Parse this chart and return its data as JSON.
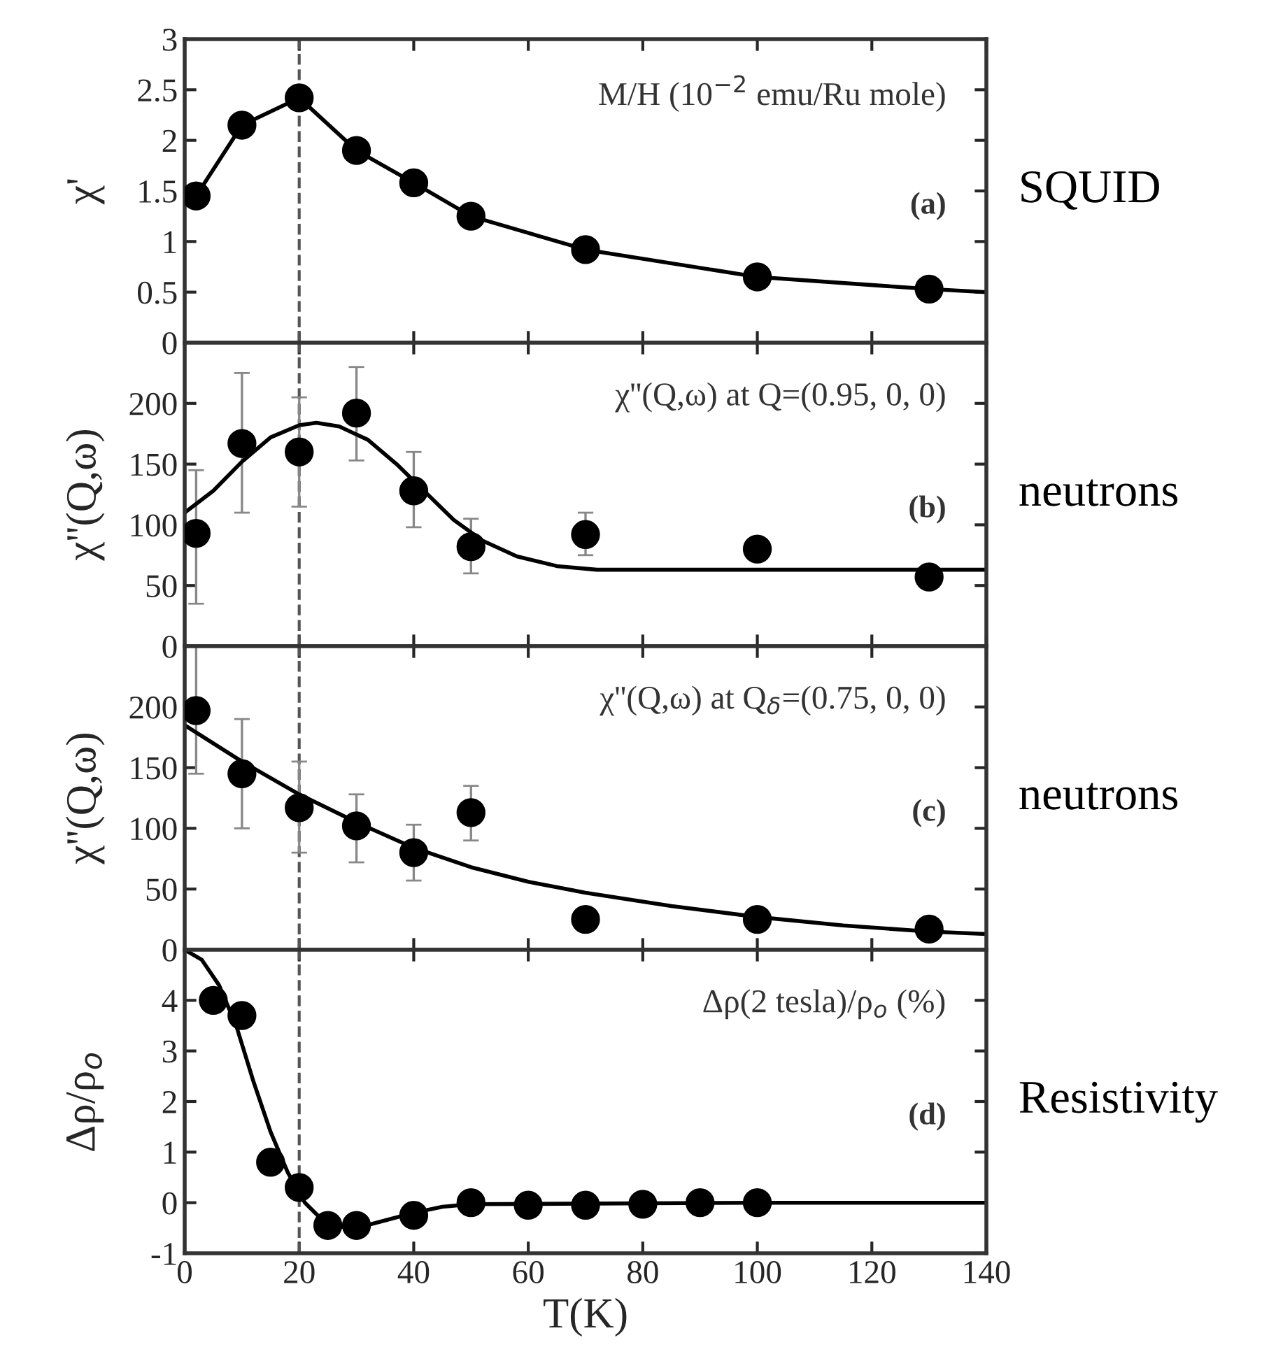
{
  "chart_data": [
    {
      "type": "scatter",
      "ylabel": "χ'",
      "xlim": [
        0,
        140
      ],
      "xticks": [
        0,
        20,
        40,
        60,
        80,
        100,
        120,
        140
      ],
      "ylim": [
        0,
        3
      ],
      "yticks": [
        0,
        0.5,
        1,
        1.5,
        2,
        2.5,
        3
      ],
      "tick_labels": "y",
      "annotations": [
        "M/H (10$^{−2}$ emu/Ru mole)",
        "(a)",
        "SQUID"
      ],
      "ref_lines": [
        {
          "axis": "x",
          "value": 20,
          "line_style": "dashed",
          "color": "#555555"
        }
      ],
      "series": [
        {
          "marker": "circle",
          "color": "#000000",
          "x": [
            2,
            10,
            20,
            30,
            40,
            50,
            70,
            100,
            130
          ],
          "values": [
            1.45,
            2.15,
            2.42,
            1.9,
            1.58,
            1.25,
            0.92,
            0.65,
            0.53
          ]
        },
        {
          "type": "line",
          "color": "#000000",
          "line_style": "solid",
          "x": [
            2,
            10,
            20,
            30,
            40,
            50,
            70,
            100,
            130,
            140
          ],
          "values": [
            1.45,
            2.15,
            2.42,
            1.9,
            1.58,
            1.25,
            0.92,
            0.65,
            0.53,
            0.5
          ]
        }
      ]
    },
    {
      "type": "scatter",
      "ylabel": "χ''(Q,ω)",
      "xlim": [
        0,
        140
      ],
      "xticks": [
        0,
        20,
        40,
        60,
        80,
        100,
        120,
        140
      ],
      "ylim": [
        0,
        250
      ],
      "yticks": [
        0,
        50,
        100,
        150,
        200
      ],
      "tick_labels": "y",
      "annotations": [
        "χ''(Q,ω) at Q=(0.95, 0, 0)",
        "(b)",
        "neutrons"
      ],
      "ref_lines": [
        {
          "axis": "x",
          "value": 20,
          "line_style": "dashed",
          "color": "#555555"
        }
      ],
      "series": [
        {
          "marker": "circle",
          "color": "#000000",
          "x": [
            2,
            10,
            20,
            30,
            40,
            50,
            70,
            100,
            130
          ],
          "values": [
            93,
            167,
            160,
            192,
            128,
            82,
            92,
            80,
            57
          ],
          "errors": [
            [
              35,
              145
            ],
            [
              110,
              225
            ],
            [
              115,
              205
            ],
            [
              153,
              230
            ],
            [
              98,
              160
            ],
            [
              60,
              105
            ],
            [
              75,
              110
            ],
            null,
            null
          ]
        },
        {
          "type": "line",
          "color": "#000000",
          "line_style": "solid",
          "x": [
            0,
            5,
            10,
            15,
            20,
            23,
            27,
            32,
            37,
            42,
            47,
            52,
            58,
            65,
            72,
            80,
            100,
            120,
            140
          ],
          "values": [
            110,
            128,
            152,
            172,
            182,
            184,
            181,
            170,
            150,
            127,
            104,
            87,
            74,
            66,
            63,
            63,
            63,
            63,
            63
          ]
        }
      ]
    },
    {
      "type": "scatter",
      "ylabel": "χ''(Q,ω)",
      "xlim": [
        0,
        140
      ],
      "xticks": [
        0,
        20,
        40,
        60,
        80,
        100,
        120,
        140
      ],
      "ylim": [
        0,
        250
      ],
      "yticks": [
        0,
        50,
        100,
        150,
        200
      ],
      "tick_labels": "y",
      "annotations": [
        "χ''(Q,ω) at Q$_{δ}$=(0.75, 0, 0)",
        "(c)",
        "neutrons"
      ],
      "ref_lines": [
        {
          "axis": "x",
          "value": 20,
          "line_style": "dashed",
          "color": "#555555"
        }
      ],
      "series": [
        {
          "marker": "circle",
          "color": "#000000",
          "x": [
            2,
            10,
            20,
            30,
            40,
            50,
            70,
            100,
            130
          ],
          "values": [
            197,
            145,
            117,
            102,
            80,
            113,
            25,
            25,
            17
          ],
          "errors": [
            [
              145,
              250
            ],
            [
              100,
              190
            ],
            [
              80,
              155
            ],
            [
              72,
              128
            ],
            [
              57,
              103
            ],
            [
              90,
              135
            ],
            null,
            null,
            null
          ]
        },
        {
          "type": "line",
          "color": "#000000",
          "line_style": "solid",
          "x": [
            0,
            10,
            20,
            30,
            40,
            50,
            60,
            70,
            85,
            100,
            115,
            130,
            140
          ],
          "values": [
            185,
            155,
            128,
            105,
            84,
            68,
            56,
            47,
            36,
            27,
            20,
            15,
            13
          ]
        }
      ]
    },
    {
      "type": "scatter",
      "xlabel": "T(K)",
      "ylabel": "Δρ/ρ$_{o}$",
      "xlim": [
        0,
        140
      ],
      "xticks": [
        0,
        20,
        40,
        60,
        80,
        100,
        120,
        140
      ],
      "ylim": [
        -1,
        5
      ],
      "yticks": [
        -1,
        0,
        1,
        2,
        3,
        4,
        {
          "value": 5,
          "label": null
        }
      ],
      "annotations": [
        "Δρ(2 tesla)/ρ$_{o}$ (%)",
        "(d)",
        "Resistivity"
      ],
      "ref_lines": [
        {
          "axis": "x",
          "value": 20,
          "line_style": "dashed",
          "color": "#555555"
        }
      ],
      "series": [
        {
          "marker": "circle",
          "color": "#000000",
          "x": [
            5,
            10,
            15,
            20,
            25,
            30,
            40,
            50,
            60,
            70,
            80,
            90,
            100
          ],
          "values": [
            4.0,
            3.7,
            0.8,
            0.3,
            -0.45,
            -0.45,
            -0.25,
            0,
            -0.05,
            -0.05,
            -0.03,
            0,
            0
          ]
        },
        {
          "type": "line",
          "color": "#000000",
          "line_style": "solid",
          "x": [
            0,
            3,
            6,
            9,
            12,
            15,
            18,
            21,
            25,
            30,
            35,
            40,
            45,
            50,
            100,
            140
          ],
          "values": [
            5,
            4.8,
            4.3,
            3.5,
            2.4,
            1.4,
            0.6,
            0.0,
            -0.45,
            -0.5,
            -0.35,
            -0.2,
            -0.08,
            -0.03,
            0,
            0
          ]
        }
      ]
    }
  ]
}
